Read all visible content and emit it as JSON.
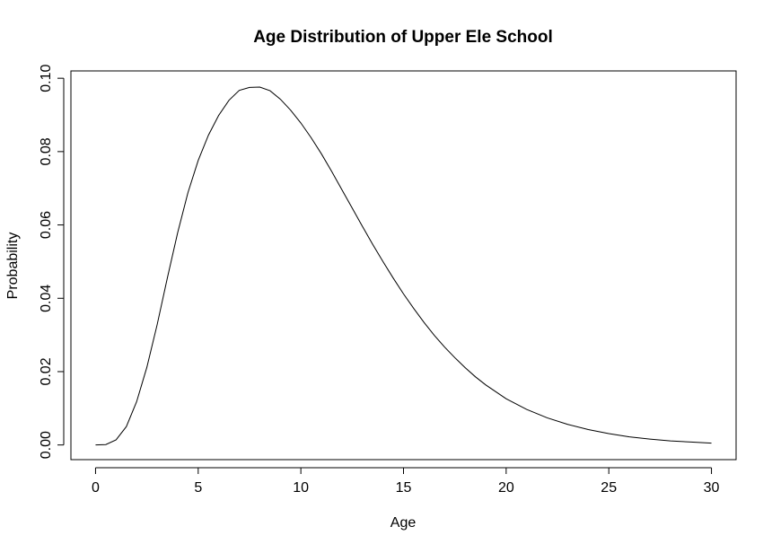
{
  "chart_data": {
    "type": "line",
    "title": "Age Distribution of Upper Ele School",
    "xlabel": "Age",
    "ylabel": "Probability",
    "xlim": [
      -1.2,
      31.2
    ],
    "ylim": [
      -0.004,
      0.102
    ],
    "xticks": [
      0,
      5,
      10,
      15,
      20,
      25,
      30
    ],
    "xtick_labels": [
      "0",
      "5",
      "10",
      "15",
      "20",
      "25",
      "30"
    ],
    "yticks": [
      0.0,
      0.02,
      0.04,
      0.06,
      0.08,
      0.1
    ],
    "ytick_labels": [
      "0.00",
      "0.02",
      "0.04",
      "0.06",
      "0.08",
      "0.10"
    ],
    "grid": false,
    "legend": "none",
    "line_color": "#000000",
    "series": [
      {
        "x": [
          0,
          0.5,
          1,
          1.5,
          2,
          2.5,
          3,
          3.5,
          4,
          4.5,
          5,
          5.5,
          6,
          6.5,
          7,
          7.5,
          8,
          8.5,
          9,
          9.5,
          10,
          10.5,
          11,
          11.5,
          12,
          12.5,
          13,
          13.5,
          14,
          14.5,
          15,
          15.5,
          16,
          16.5,
          17,
          17.5,
          18,
          18.5,
          19,
          19.5,
          20,
          21,
          22,
          23,
          24,
          25,
          26,
          27,
          28,
          29,
          30
        ],
        "y": [
          0.0,
          0.0001,
          0.0014,
          0.005,
          0.0118,
          0.0212,
          0.0328,
          0.0456,
          0.0579,
          0.0688,
          0.0776,
          0.0845,
          0.0899,
          0.094,
          0.0967,
          0.0975,
          0.0976,
          0.0966,
          0.0943,
          0.0913,
          0.0878,
          0.0838,
          0.0794,
          0.0746,
          0.0696,
          0.0646,
          0.0596,
          0.0547,
          0.05,
          0.0455,
          0.0412,
          0.0372,
          0.0334,
          0.0299,
          0.0267,
          0.0238,
          0.0211,
          0.0186,
          0.0164,
          0.0145,
          0.0126,
          0.0097,
          0.0074,
          0.0056,
          0.0042,
          0.0031,
          0.0022,
          0.0016,
          0.0011,
          0.0008,
          0.0005
        ]
      }
    ]
  }
}
